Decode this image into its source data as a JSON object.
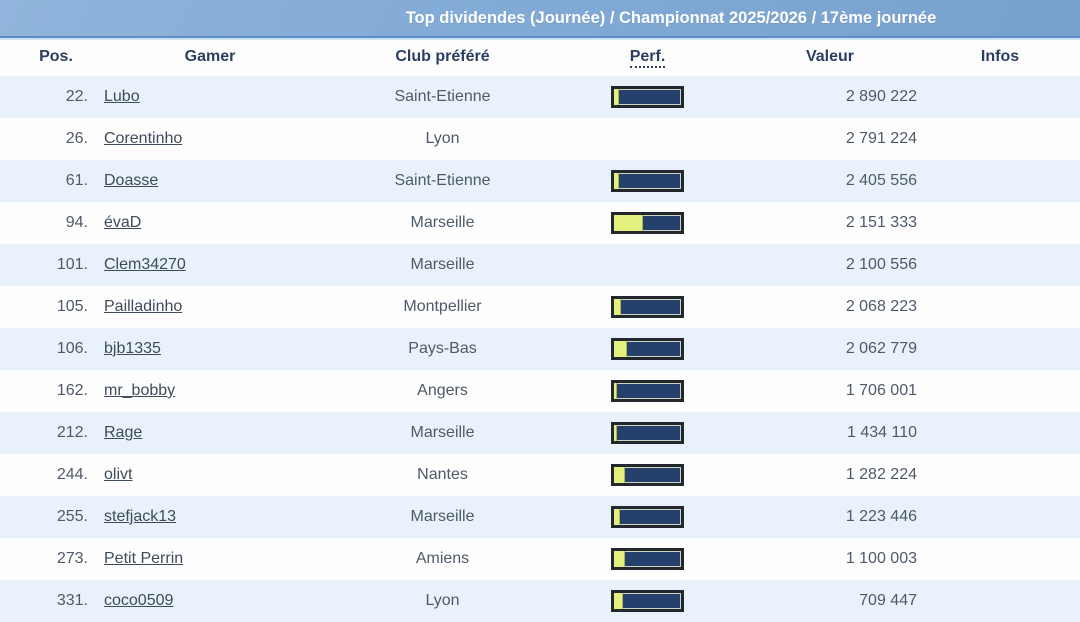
{
  "header": {
    "title": "Top dividendes (Journée) / Championnat 2025/2026 / 17ème journée"
  },
  "columns": {
    "pos": "Pos.",
    "gamer": "Gamer",
    "club": "Club préféré",
    "perf": "Perf.",
    "valeur": "Valeur",
    "infos": "Infos"
  },
  "table": {
    "rows": [
      {
        "pos": "22.",
        "gamer": "Lubo",
        "club": "Saint-Etienne",
        "perf_pct": 8,
        "valeur": "2 890 222",
        "infos": ""
      },
      {
        "pos": "26.",
        "gamer": "Corentinho",
        "club": "Lyon",
        "perf_pct": null,
        "valeur": "2 791 224",
        "infos": ""
      },
      {
        "pos": "61.",
        "gamer": "Doasse",
        "club": "Saint-Etienne",
        "perf_pct": 8,
        "valeur": "2 405 556",
        "infos": ""
      },
      {
        "pos": "94.",
        "gamer": "évaD",
        "club": "Marseille",
        "perf_pct": 43,
        "valeur": "2 151 333",
        "infos": ""
      },
      {
        "pos": "101.",
        "gamer": "Clem34270",
        "club": "Marseille",
        "perf_pct": null,
        "valeur": "2 100 556",
        "infos": ""
      },
      {
        "pos": "105.",
        "gamer": "Pailladinho",
        "club": "Montpellier",
        "perf_pct": 11,
        "valeur": "2 068 223",
        "infos": ""
      },
      {
        "pos": "106.",
        "gamer": "bjb1335",
        "club": "Pays-Bas",
        "perf_pct": 20,
        "valeur": "2 062 779",
        "infos": ""
      },
      {
        "pos": "162.",
        "gamer": "mr_bobby",
        "club": "Angers",
        "perf_pct": 5,
        "valeur": "1 706 001",
        "infos": ""
      },
      {
        "pos": "212.",
        "gamer": "Rage",
        "club": "Marseille",
        "perf_pct": 5,
        "valeur": "1 434 110",
        "infos": ""
      },
      {
        "pos": "244.",
        "gamer": "olivt",
        "club": "Nantes",
        "perf_pct": 17,
        "valeur": "1 282 224",
        "infos": ""
      },
      {
        "pos": "255.",
        "gamer": "stefjack13",
        "club": "Marseille",
        "perf_pct": 9,
        "valeur": "1 223 446",
        "infos": ""
      },
      {
        "pos": "273.",
        "gamer": "Petit Perrin",
        "club": "Amiens",
        "perf_pct": 16,
        "valeur": "1 100 003",
        "infos": ""
      },
      {
        "pos": "331.",
        "gamer": "coco0509",
        "club": "Lyon",
        "perf_pct": 14,
        "valeur": "709 447",
        "infos": ""
      }
    ]
  },
  "colors": {
    "header-bar": "#7ba6d4",
    "header-bar-dark-edge": "#5a8ec5",
    "header-bar-light-edge": "#cfe2f3",
    "title-text": "#ffffff",
    "column-header-text": "#2d3f60",
    "row-alt": "#e9f1fa",
    "row-white": "#fdfdfe",
    "text": "#4e5a68",
    "link": "#3e4b5a",
    "bar-border": "#23272e",
    "bar-track": "#24406b",
    "bar-outline": "#ccd2c4",
    "bar-fill": "#e4f07d"
  }
}
